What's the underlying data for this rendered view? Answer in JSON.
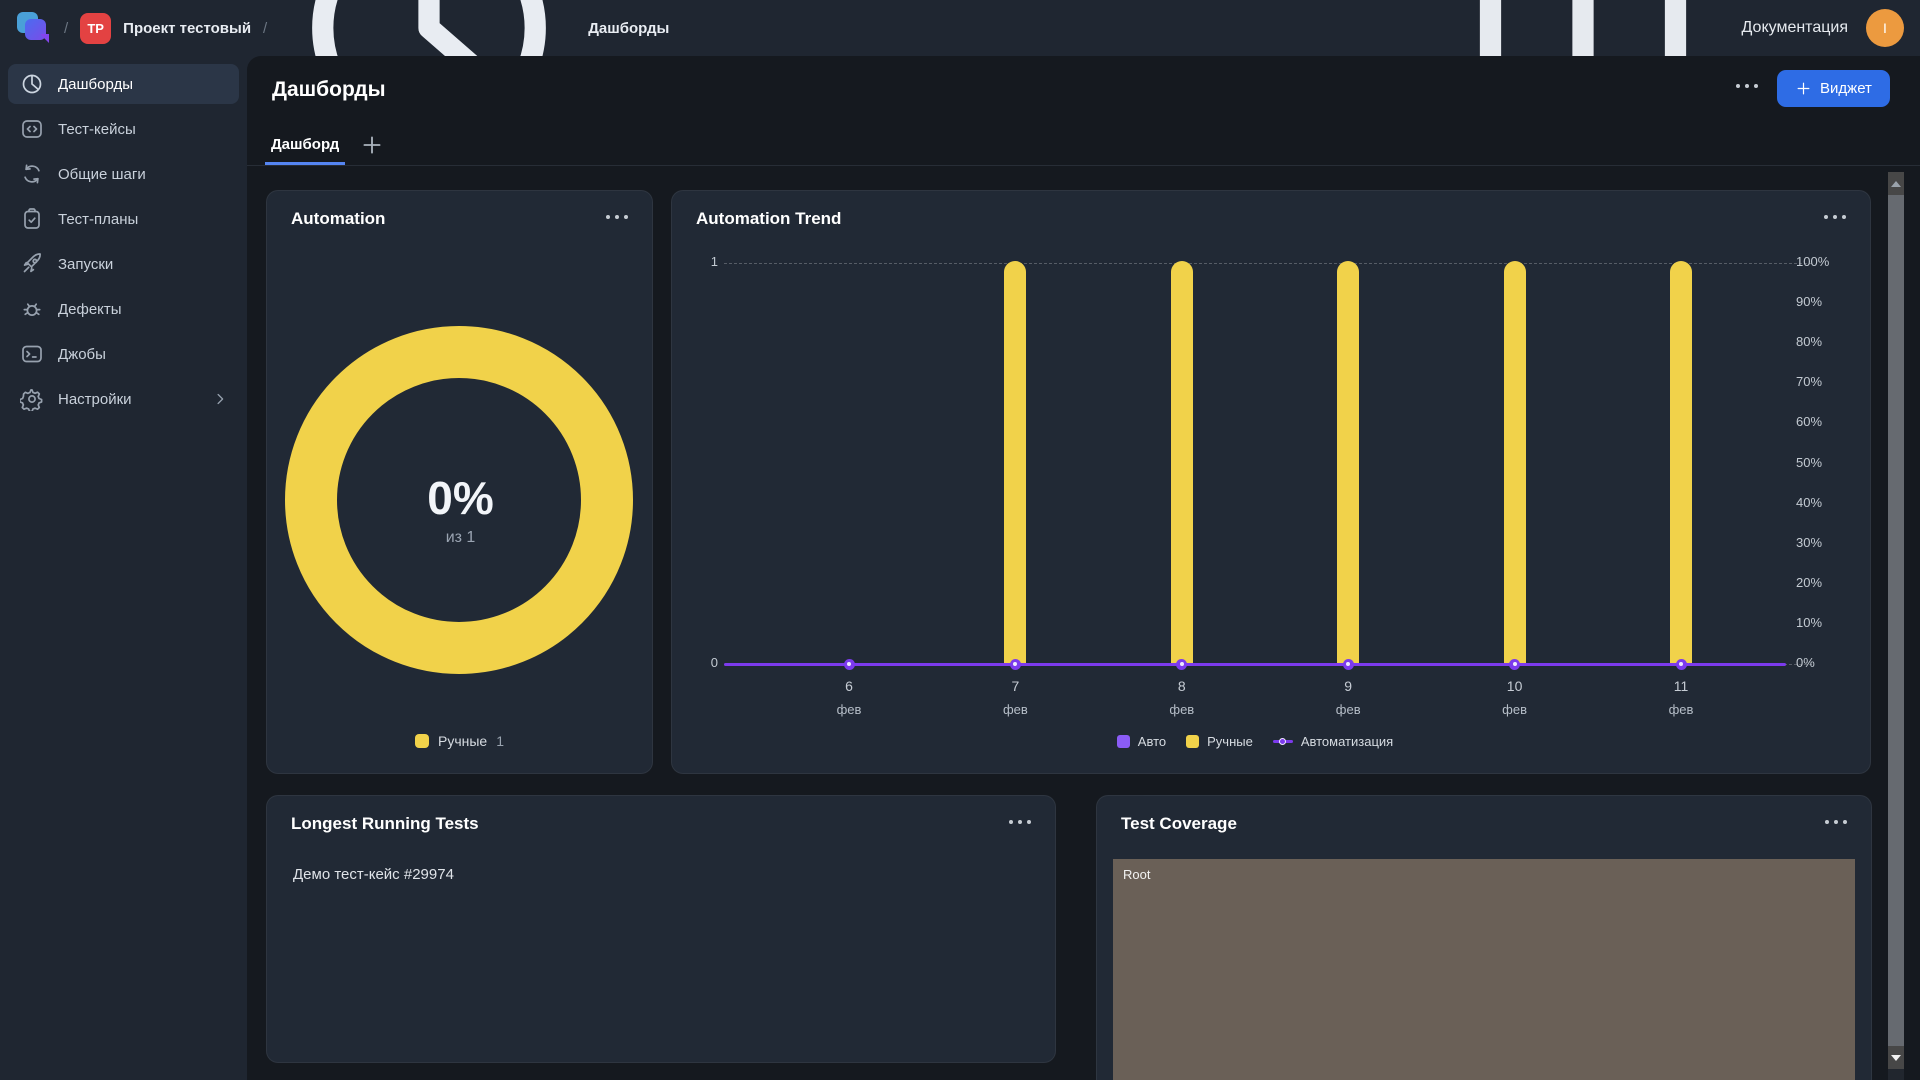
{
  "topbar": {
    "breadcrumb_sep": "/",
    "project_badge": "TP",
    "project_name": "Проект тестовый",
    "section": "Дашборды",
    "docs_label": "Документация",
    "avatar_letter": "I"
  },
  "sidebar": {
    "items": [
      {
        "label": "Дашборды",
        "icon": "pie-chart",
        "active": true
      },
      {
        "label": "Тест-кейсы",
        "icon": "code-brackets",
        "active": false
      },
      {
        "label": "Общие шаги",
        "icon": "sync-arrows",
        "active": false
      },
      {
        "label": "Тест-планы",
        "icon": "clipboard-check",
        "active": false
      },
      {
        "label": "Запуски",
        "icon": "rocket",
        "active": false
      },
      {
        "label": "Дефекты",
        "icon": "bug",
        "active": false
      },
      {
        "label": "Джобы",
        "icon": "terminal",
        "active": false
      },
      {
        "label": "Настройки",
        "icon": "gear",
        "active": false,
        "chevron": true
      }
    ]
  },
  "page": {
    "title": "Дашборды",
    "tab": "Дашборд",
    "widget_button": "Виджет"
  },
  "widgets": {
    "automation": {
      "title": "Automation"
    },
    "trend": {
      "title": "Automation Trend"
    },
    "longest": {
      "title": "Longest Running Tests",
      "items": [
        "Демо тест-кейс #29974"
      ]
    },
    "coverage": {
      "title": "Test Coverage"
    }
  },
  "chart_data": [
    {
      "type": "pie",
      "title": "Automation",
      "center_value": "0%",
      "center_sub": "из 1",
      "slices": [
        {
          "label": "Ручные",
          "value": 1,
          "color": "#f1d24a"
        }
      ]
    },
    {
      "type": "bar",
      "title": "Automation Trend",
      "categories": [
        {
          "day": "6",
          "month": "фев"
        },
        {
          "day": "7",
          "month": "фев"
        },
        {
          "day": "8",
          "month": "фев"
        },
        {
          "day": "9",
          "month": "фев"
        },
        {
          "day": "10",
          "month": "фев"
        },
        {
          "day": "11",
          "month": "фев"
        }
      ],
      "series": [
        {
          "name": "Авто",
          "type": "bar",
          "color": "#8b5cf6",
          "values": [
            0,
            0,
            0,
            0,
            0,
            0
          ]
        },
        {
          "name": "Ручные",
          "type": "bar",
          "color": "#f1d24a",
          "values": [
            0,
            1,
            1,
            1,
            1,
            1
          ]
        },
        {
          "name": "Автоматизация",
          "type": "line",
          "color": "#7c3aed",
          "values": [
            0,
            0,
            0,
            0,
            0,
            0
          ]
        }
      ],
      "y_left": {
        "min": 0,
        "max": 1,
        "ticks": [
          "0",
          "1"
        ]
      },
      "y_right": {
        "ticks": [
          "0%",
          "10%",
          "20%",
          "30%",
          "40%",
          "50%",
          "60%",
          "70%",
          "80%",
          "90%",
          "100%"
        ]
      },
      "grid": "dashed-horizontal",
      "legend_position": "bottom"
    },
    {
      "type": "heatmap",
      "title": "Test Coverage",
      "nodes": [
        {
          "label": "Root",
          "color": "#6a6057"
        }
      ]
    }
  ],
  "colors": {
    "accent_blue": "#2e6ce5",
    "tab_underline": "#5585f2",
    "yellow": "#f1d24a",
    "purple": "#8b5cf6",
    "purple_line": "#7c3aed",
    "badge_red": "#e34242",
    "avatar_orange": "#ec9a3f",
    "treemap_root": "#6a6057"
  }
}
